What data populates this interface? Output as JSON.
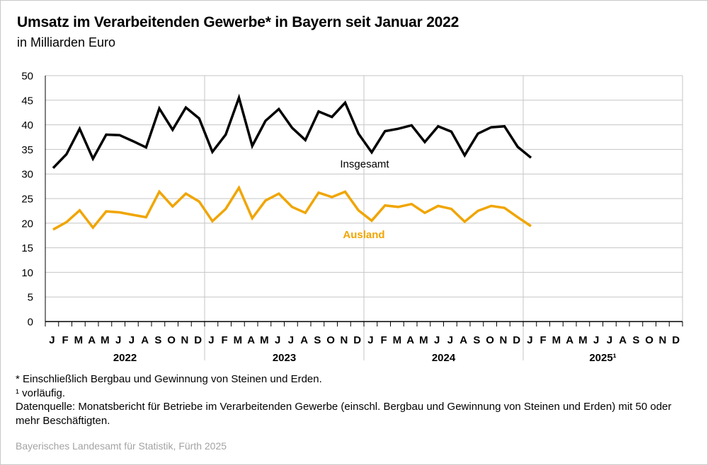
{
  "title": "Umsatz im Verarbeitenden Gewerbe* in Bayern seit Januar 2022",
  "subtitle": "in Milliarden Euro",
  "colors": {
    "insgesamt": "#000000",
    "ausland": "#f0a500",
    "grid": "#c6c6c6",
    "axis": "#000000"
  },
  "chart_data": {
    "type": "line",
    "ylim": [
      0,
      50
    ],
    "yticks": [
      "0",
      "5",
      "10",
      "15",
      "20",
      "25",
      "30",
      "35",
      "40",
      "45",
      "50"
    ],
    "month_labels": [
      "J",
      "F",
      "M",
      "A",
      "M",
      "J",
      "J",
      "A",
      "S",
      "O",
      "N",
      "D",
      "J",
      "F",
      "M",
      "A",
      "M",
      "J",
      "J",
      "A",
      "S",
      "O",
      "N",
      "D",
      "J",
      "F",
      "M",
      "A",
      "M",
      "J",
      "J",
      "A",
      "S",
      "O",
      "N",
      "D",
      "J",
      "F",
      "M",
      "A",
      "M",
      "J",
      "J",
      "A",
      "S",
      "O",
      "N",
      "D"
    ],
    "years": [
      "2022",
      "2023",
      "2024",
      "2025¹"
    ],
    "series": [
      {
        "name": "Insgesamt",
        "color": "#000000",
        "values": [
          31.2,
          34.0,
          39.2,
          33.1,
          38.0,
          37.9,
          36.7,
          35.4,
          43.3,
          39.0,
          43.5,
          41.3,
          34.5,
          38.0,
          45.5,
          35.7,
          40.8,
          43.2,
          39.4,
          36.9,
          42.7,
          41.6,
          44.5,
          38.2,
          34.4,
          38.7,
          39.2,
          39.9,
          36.5,
          39.7,
          38.6,
          33.8,
          38.2,
          39.5,
          39.7,
          35.5,
          33.3
        ]
      },
      {
        "name": "Ausland",
        "color": "#f0a500",
        "values": [
          18.7,
          20.2,
          22.6,
          19.1,
          22.4,
          22.2,
          21.7,
          21.2,
          26.4,
          23.4,
          26.0,
          24.4,
          20.4,
          22.9,
          27.2,
          21.0,
          24.6,
          26.0,
          23.3,
          22.1,
          26.2,
          25.3,
          26.4,
          22.6,
          20.5,
          23.6,
          23.3,
          23.9,
          22.1,
          23.5,
          22.9,
          20.3,
          22.5,
          23.5,
          23.1,
          21.2,
          19.4
        ]
      }
    ]
  },
  "footnotes": {
    "star": "* Einschließlich Bergbau und Gewinnung von Steinen und Erden.",
    "one": "¹  vorläufig.",
    "source": "Datenquelle: Monatsbericht für Betriebe im Verarbeitenden Gewerbe (einschl. Bergbau und Gewinnung von Steinen und Erden) mit 50 oder mehr Beschäftigten."
  },
  "credit": "Bayerisches Landesamt für Statistik, Fürth 2025"
}
